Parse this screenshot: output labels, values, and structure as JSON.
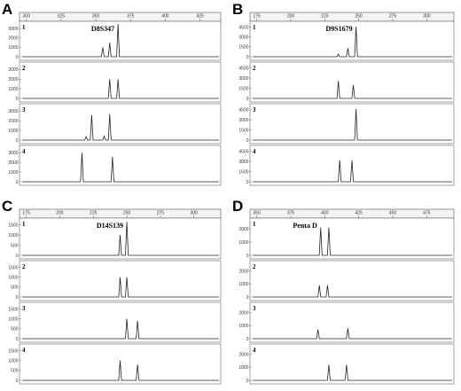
{
  "chart_data": [
    {
      "type": "line",
      "panel": "A",
      "marker": "D8S347",
      "x_ticks": [
        300,
        325,
        350,
        375,
        400,
        425
      ],
      "xlim": [
        295,
        440
      ],
      "y_ticks": [
        0,
        1000,
        2000,
        3000
      ],
      "ylim": [
        0,
        3500
      ],
      "traces": [
        {
          "label": "1",
          "peaks": [
            {
              "x": 355,
              "y": 1000
            },
            {
              "x": 360,
              "y": 1500
            },
            {
              "x": 366,
              "y": 3500
            }
          ]
        },
        {
          "label": "2",
          "peaks": [
            {
              "x": 360,
              "y": 2000
            },
            {
              "x": 366,
              "y": 2000
            }
          ]
        },
        {
          "label": "3",
          "peaks": [
            {
              "x": 343,
              "y": 350
            },
            {
              "x": 347,
              "y": 2600
            },
            {
              "x": 356,
              "y": 400
            },
            {
              "x": 360,
              "y": 2700
            }
          ]
        },
        {
          "label": "4",
          "peaks": [
            {
              "x": 340,
              "y": 3000
            },
            {
              "x": 362,
              "y": 2600
            }
          ]
        }
      ]
    },
    {
      "type": "line",
      "panel": "B",
      "marker": "D9S1679",
      "x_ticks": [
        175,
        200,
        225,
        250,
        275,
        300
      ],
      "xlim": [
        170,
        320
      ],
      "y_ticks": [
        0,
        1500,
        3000,
        4500
      ],
      "ylim": [
        0,
        5000
      ],
      "traces": [
        {
          "label": "1",
          "peaks": [
            {
              "x": 235,
              "y": 400
            },
            {
              "x": 242,
              "y": 1300
            },
            {
              "x": 248,
              "y": 4600
            }
          ]
        },
        {
          "label": "2",
          "peaks": [
            {
              "x": 235,
              "y": 2600
            },
            {
              "x": 246,
              "y": 2000
            }
          ]
        },
        {
          "label": "3",
          "peaks": [
            {
              "x": 248,
              "y": 4600
            }
          ]
        },
        {
          "label": "4",
          "peaks": [
            {
              "x": 236,
              "y": 3200
            },
            {
              "x": 245,
              "y": 3200
            }
          ]
        }
      ]
    },
    {
      "type": "line",
      "panel": "C",
      "marker": "D14S139",
      "x_ticks": [
        175,
        200,
        225,
        250,
        275,
        300
      ],
      "xlim": [
        170,
        320
      ],
      "y_ticks": [
        0,
        500,
        1000,
        1500
      ],
      "ylim": [
        0,
        1700
      ],
      "traces": [
        {
          "label": "1",
          "peaks": [
            {
              "x": 245,
              "y": 1000
            },
            {
              "x": 250,
              "y": 1650
            }
          ]
        },
        {
          "label": "2",
          "peaks": [
            {
              "x": 245,
              "y": 1000
            },
            {
              "x": 250,
              "y": 1000
            }
          ]
        },
        {
          "label": "3",
          "peaks": [
            {
              "x": 250,
              "y": 1000
            },
            {
              "x": 258,
              "y": 900
            }
          ]
        },
        {
          "label": "4",
          "peaks": [
            {
              "x": 245,
              "y": 1000
            },
            {
              "x": 258,
              "y": 800
            }
          ]
        }
      ]
    },
    {
      "type": "line",
      "panel": "D",
      "marker": "Penta D",
      "x_ticks": [
        350,
        375,
        400,
        425,
        450,
        475
      ],
      "xlim": [
        345,
        495
      ],
      "y_ticks": [
        0,
        1000,
        2000
      ],
      "ylim": [
        0,
        2600
      ],
      "traces": [
        {
          "label": "1",
          "peaks": [
            {
              "x": 397,
              "y": 2100
            },
            {
              "x": 403,
              "y": 2100
            }
          ]
        },
        {
          "label": "2",
          "peaks": [
            {
              "x": 396,
              "y": 900
            },
            {
              "x": 402,
              "y": 900
            }
          ]
        },
        {
          "label": "3",
          "peaks": [
            {
              "x": 395,
              "y": 700
            },
            {
              "x": 417,
              "y": 800
            }
          ]
        },
        {
          "label": "4",
          "peaks": [
            {
              "x": 403,
              "y": 1200
            },
            {
              "x": 416,
              "y": 1200
            }
          ]
        }
      ]
    }
  ]
}
